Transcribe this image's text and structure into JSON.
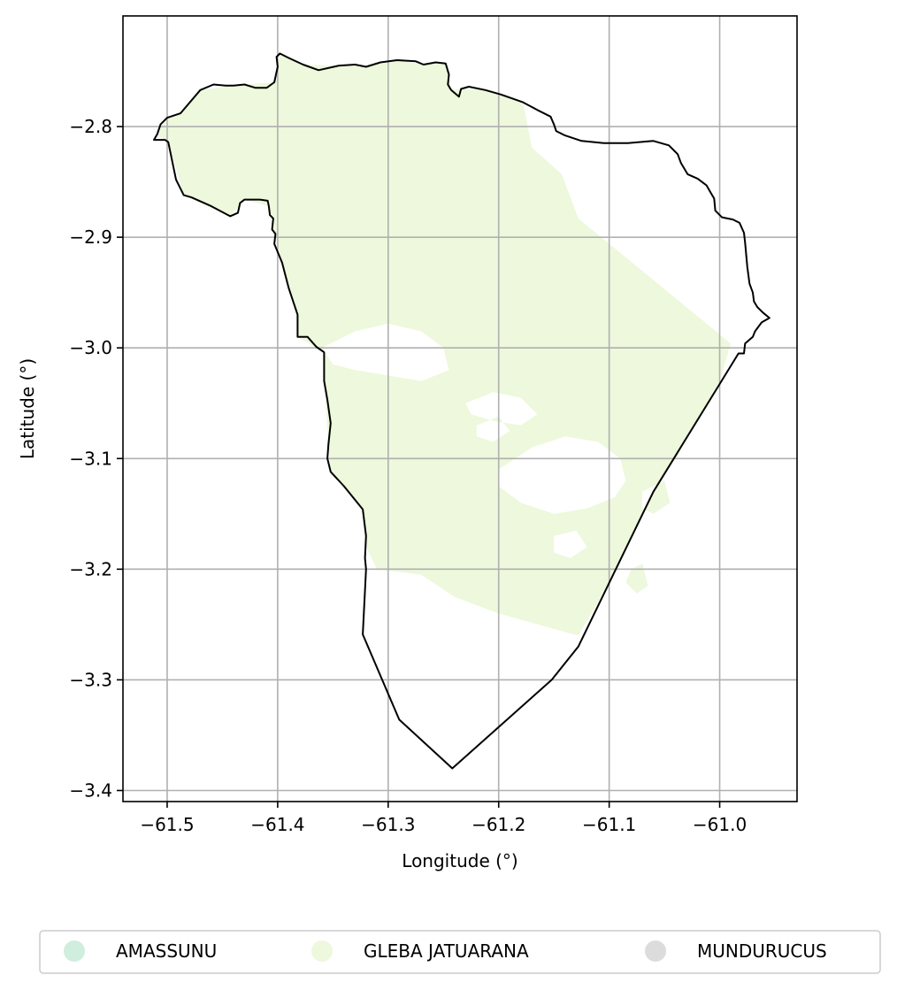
{
  "chart_data": {
    "type": "map",
    "xlabel": "Longitude (°)",
    "ylabel": "Latitude (°)",
    "xlim": [
      -61.54,
      -60.93
    ],
    "ylim": [
      -3.41,
      -2.7
    ],
    "x_ticks": [
      -61.5,
      -61.4,
      -61.3,
      -61.2,
      -61.1,
      -61.0
    ],
    "y_ticks": [
      -2.8,
      -2.9,
      -3.0,
      -3.1,
      -3.2,
      -3.3,
      -3.4
    ],
    "x_tick_labels": [
      "−61.5",
      "−61.4",
      "−61.3",
      "−61.2",
      "−61.1",
      "−61.0"
    ],
    "y_tick_labels": [
      "−2.8",
      "−2.9",
      "−3.0",
      "−3.1",
      "−3.2",
      "−3.3",
      "−3.4"
    ],
    "grid": true,
    "legend_position": "bottom-center",
    "legend": [
      {
        "label": "AMASSUNU",
        "color": "#cfeedd"
      },
      {
        "label": "GLEBA JATUARANA",
        "color": "#edf8dc"
      },
      {
        "label": "MUNDURUCUS",
        "color": "#dcdcdc"
      }
    ],
    "boundary": [
      [
        -61.512,
        -2.812
      ],
      [
        -61.509,
        -2.807
      ],
      [
        -61.506,
        -2.798
      ],
      [
        -61.5,
        -2.792
      ],
      [
        -61.488,
        -2.788
      ],
      [
        -61.47,
        -2.767
      ],
      [
        -61.458,
        -2.762
      ],
      [
        -61.447,
        -2.763
      ],
      [
        -61.44,
        -2.763
      ],
      [
        -61.43,
        -2.762
      ],
      [
        -61.42,
        -2.765
      ],
      [
        -61.41,
        -2.765
      ],
      [
        -61.403,
        -2.76
      ],
      [
        -61.4,
        -2.746
      ],
      [
        -61.401,
        -2.737
      ],
      [
        -61.398,
        -2.734
      ],
      [
        -61.39,
        -2.738
      ],
      [
        -61.377,
        -2.744
      ],
      [
        -61.363,
        -2.749
      ],
      [
        -61.345,
        -2.745
      ],
      [
        -61.33,
        -2.744
      ],
      [
        -61.32,
        -2.746
      ],
      [
        -61.307,
        -2.742
      ],
      [
        -61.292,
        -2.74
      ],
      [
        -61.275,
        -2.741
      ],
      [
        -61.268,
        -2.744
      ],
      [
        -61.257,
        -2.742
      ],
      [
        -61.248,
        -2.743
      ],
      [
        -61.245,
        -2.753
      ],
      [
        -61.246,
        -2.762
      ],
      [
        -61.243,
        -2.767
      ],
      [
        -61.236,
        -2.773
      ],
      [
        -61.234,
        -2.766
      ],
      [
        -61.227,
        -2.764
      ],
      [
        -61.212,
        -2.767
      ],
      [
        -61.198,
        -2.771
      ],
      [
        -61.178,
        -2.778
      ],
      [
        -61.165,
        -2.785
      ],
      [
        -61.153,
        -2.791
      ],
      [
        -61.15,
        -2.798
      ],
      [
        -61.148,
        -2.804
      ],
      [
        -61.14,
        -2.808
      ],
      [
        -61.125,
        -2.813
      ],
      [
        -61.105,
        -2.815
      ],
      [
        -61.083,
        -2.815
      ],
      [
        -61.06,
        -2.813
      ],
      [
        -61.046,
        -2.817
      ],
      [
        -61.038,
        -2.825
      ],
      [
        -61.035,
        -2.833
      ],
      [
        -61.029,
        -2.843
      ],
      [
        -61.02,
        -2.847
      ],
      [
        -61.012,
        -2.853
      ],
      [
        -61.008,
        -2.86
      ],
      [
        -61.005,
        -2.865
      ],
      [
        -61.004,
        -2.876
      ],
      [
        -60.998,
        -2.882
      ],
      [
        -60.988,
        -2.884
      ],
      [
        -60.982,
        -2.887
      ],
      [
        -60.978,
        -2.896
      ],
      [
        -60.977,
        -2.905
      ],
      [
        -60.975,
        -2.927
      ],
      [
        -60.973,
        -2.942
      ],
      [
        -60.97,
        -2.95
      ],
      [
        -60.969,
        -2.958
      ],
      [
        -60.966,
        -2.963
      ],
      [
        -60.961,
        -2.968
      ],
      [
        -60.955,
        -2.973
      ],
      [
        -60.962,
        -2.977
      ],
      [
        -60.968,
        -2.985
      ],
      [
        -60.97,
        -2.99
      ],
      [
        -60.977,
        -2.996
      ],
      [
        -60.978,
        -3.005
      ],
      [
        -60.983,
        -3.005
      ],
      [
        -61.06,
        -3.13
      ],
      [
        -61.128,
        -3.27
      ],
      [
        -61.152,
        -3.3
      ],
      [
        -61.242,
        -3.38
      ],
      [
        -61.29,
        -3.336
      ],
      [
        -61.323,
        -3.259
      ],
      [
        -61.32,
        -3.2
      ],
      [
        -61.321,
        -3.19
      ],
      [
        -61.32,
        -3.17
      ],
      [
        -61.323,
        -3.146
      ],
      [
        -61.34,
        -3.125
      ],
      [
        -61.352,
        -3.112
      ],
      [
        -61.355,
        -3.1
      ],
      [
        -61.354,
        -3.087
      ],
      [
        -61.352,
        -3.068
      ],
      [
        -61.355,
        -3.047
      ],
      [
        -61.358,
        -3.03
      ],
      [
        -61.358,
        -3.004
      ],
      [
        -61.365,
        -2.999
      ],
      [
        -61.373,
        -2.99
      ],
      [
        -61.382,
        -2.99
      ],
      [
        -61.382,
        -2.97
      ],
      [
        -61.39,
        -2.946
      ],
      [
        -61.396,
        -2.923
      ],
      [
        -61.403,
        -2.906
      ],
      [
        -61.402,
        -2.897
      ],
      [
        -61.405,
        -2.893
      ],
      [
        -61.404,
        -2.883
      ],
      [
        -61.407,
        -2.88
      ],
      [
        -61.408,
        -2.872
      ],
      [
        -61.409,
        -2.867
      ],
      [
        -61.416,
        -2.866
      ],
      [
        -61.43,
        -2.866
      ],
      [
        -61.434,
        -2.869
      ],
      [
        -61.436,
        -2.878
      ],
      [
        -61.443,
        -2.881
      ],
      [
        -61.46,
        -2.872
      ],
      [
        -61.478,
        -2.864
      ],
      [
        -61.485,
        -2.862
      ],
      [
        -61.492,
        -2.848
      ],
      [
        -61.499,
        -2.814
      ],
      [
        -61.502,
        -2.812
      ]
    ],
    "gleba_fill": [
      [
        -61.51,
        -2.807
      ],
      [
        -61.5,
        -2.792
      ],
      [
        -61.488,
        -2.788
      ],
      [
        -61.47,
        -2.767
      ],
      [
        -61.44,
        -2.763
      ],
      [
        -61.403,
        -2.76
      ],
      [
        -61.398,
        -2.735
      ],
      [
        -61.377,
        -2.744
      ],
      [
        -61.345,
        -2.745
      ],
      [
        -61.32,
        -2.746
      ],
      [
        -61.292,
        -2.74
      ],
      [
        -61.268,
        -2.744
      ],
      [
        -61.248,
        -2.743
      ],
      [
        -61.243,
        -2.767
      ],
      [
        -61.234,
        -2.766
      ],
      [
        -61.212,
        -2.767
      ],
      [
        -61.178,
        -2.778
      ],
      [
        -61.17,
        -2.819
      ],
      [
        -61.143,
        -2.843
      ],
      [
        -61.128,
        -2.883
      ],
      [
        -60.99,
        -2.996
      ],
      [
        -61.0,
        -3.03
      ],
      [
        -61.04,
        -3.1
      ],
      [
        -61.06,
        -3.13
      ],
      [
        -61.09,
        -3.19
      ],
      [
        -61.11,
        -3.23
      ],
      [
        -61.128,
        -3.26
      ],
      [
        -61.2,
        -3.24
      ],
      [
        -61.24,
        -3.225
      ],
      [
        -61.27,
        -3.205
      ],
      [
        -61.31,
        -3.2
      ],
      [
        -61.32,
        -3.18
      ],
      [
        -61.323,
        -3.146
      ],
      [
        -61.352,
        -3.112
      ],
      [
        -61.354,
        -3.087
      ],
      [
        -61.358,
        -3.03
      ],
      [
        -61.358,
        -3.004
      ],
      [
        -61.382,
        -2.99
      ],
      [
        -61.382,
        -2.97
      ],
      [
        -61.396,
        -2.923
      ],
      [
        -61.408,
        -2.872
      ],
      [
        -61.43,
        -2.866
      ],
      [
        -61.443,
        -2.881
      ],
      [
        -61.485,
        -2.862
      ],
      [
        -61.499,
        -2.814
      ]
    ],
    "gleba_holes": [
      [
        [
          -61.36,
          -3.0
        ],
        [
          -61.33,
          -2.985
        ],
        [
          -61.3,
          -2.978
        ],
        [
          -61.27,
          -2.985
        ],
        [
          -61.25,
          -3.0
        ],
        [
          -61.245,
          -3.02
        ],
        [
          -61.27,
          -3.03
        ],
        [
          -61.3,
          -3.025
        ],
        [
          -61.33,
          -3.02
        ],
        [
          -61.35,
          -3.015
        ]
      ],
      [
        [
          -61.23,
          -3.05
        ],
        [
          -61.205,
          -3.04
        ],
        [
          -61.18,
          -3.045
        ],
        [
          -61.165,
          -3.06
        ],
        [
          -61.18,
          -3.07
        ],
        [
          -61.205,
          -3.066
        ],
        [
          -61.225,
          -3.06
        ]
      ],
      [
        [
          -61.2,
          -3.11
        ],
        [
          -61.17,
          -3.09
        ],
        [
          -61.14,
          -3.08
        ],
        [
          -61.11,
          -3.085
        ],
        [
          -61.09,
          -3.1
        ],
        [
          -61.085,
          -3.12
        ],
        [
          -61.095,
          -3.135
        ],
        [
          -61.12,
          -3.145
        ],
        [
          -61.15,
          -3.15
        ],
        [
          -61.18,
          -3.14
        ],
        [
          -61.2,
          -3.125
        ]
      ],
      [
        [
          -61.22,
          -3.07
        ],
        [
          -61.2,
          -3.062
        ],
        [
          -61.19,
          -3.075
        ],
        [
          -61.205,
          -3.085
        ],
        [
          -61.22,
          -3.08
        ]
      ],
      [
        [
          -61.07,
          -3.13
        ],
        [
          -61.05,
          -3.12
        ],
        [
          -61.045,
          -3.14
        ],
        [
          -61.06,
          -3.15
        ],
        [
          -61.07,
          -3.145
        ]
      ],
      [
        [
          -61.15,
          -3.17
        ],
        [
          -61.13,
          -3.165
        ],
        [
          -61.12,
          -3.18
        ],
        [
          -61.135,
          -3.19
        ],
        [
          -61.15,
          -3.185
        ]
      ],
      [
        [
          -61.08,
          -3.2
        ],
        [
          -61.07,
          -3.195
        ],
        [
          -61.065,
          -3.215
        ],
        [
          -61.075,
          -3.222
        ],
        [
          -61.085,
          -3.212
        ]
      ]
    ]
  }
}
